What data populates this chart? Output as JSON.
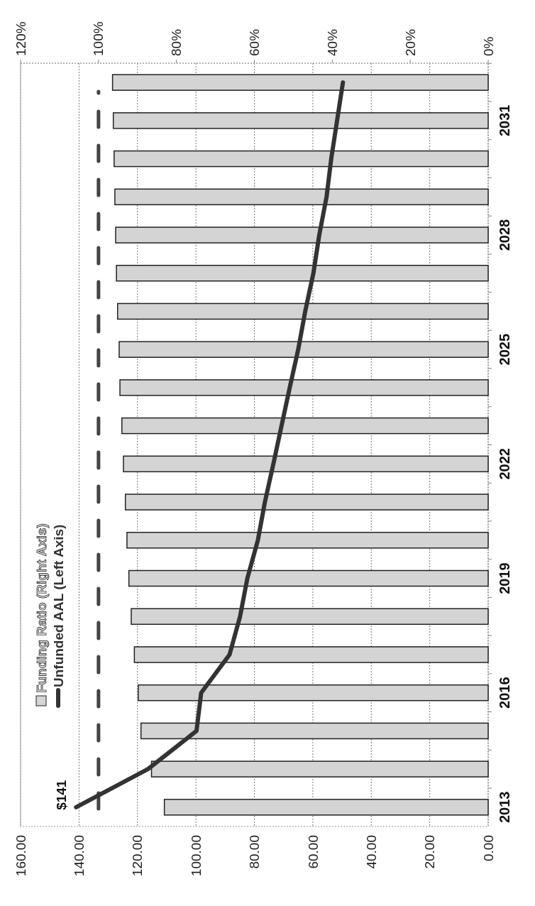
{
  "chart_data": {
    "type": "bar",
    "orientation": "horizontal",
    "categories": [
      null,
      "2031",
      null,
      null,
      "2028",
      null,
      null,
      "2025",
      null,
      null,
      "2022",
      null,
      null,
      "2019",
      null,
      null,
      "2016",
      null,
      null,
      "2013"
    ],
    "series": [
      {
        "name": "Funding Ratio (Right Axis)",
        "type": "bar",
        "axis": "x2",
        "color": "#d4d4d4",
        "values": [
          96.4,
          96.2,
          96.0,
          95.8,
          95.6,
          95.4,
          95.1,
          94.7,
          94.5,
          94.0,
          93.6,
          93.1,
          92.7,
          92.2,
          91.6,
          90.8,
          89.8,
          89.1,
          86.4,
          83.1
        ]
      },
      {
        "name": "Unfunded AAL (Left Axis)",
        "type": "line",
        "color": "#333333",
        "values": [
          49.7,
          51.7,
          53.7,
          55.3,
          57.8,
          59.8,
          62.6,
          65.0,
          67.9,
          70.7,
          73.5,
          76.4,
          78.8,
          82.4,
          84.9,
          88.5,
          98.2,
          99.8,
          116.4,
          141
        ]
      }
    ],
    "xlim": [
      160,
      0
    ],
    "xticks": [
      {
        "value": 160,
        "label": "160.00"
      },
      {
        "value": 140,
        "label": "140.00"
      },
      {
        "value": 120,
        "label": "120.00"
      },
      {
        "value": 100,
        "label": "100.00"
      },
      {
        "value": 80,
        "label": "80.00"
      },
      {
        "value": 60,
        "label": "60.00"
      },
      {
        "value": 40,
        "label": "40.00"
      },
      {
        "value": 20,
        "label": "20.00"
      },
      {
        "value": 0,
        "label": "0.00"
      }
    ],
    "x2lim": [
      120,
      0
    ],
    "x2ticks": [
      {
        "value": 120,
        "label": "120%"
      },
      {
        "value": 100,
        "label": "100%"
      },
      {
        "value": 80,
        "label": "80%"
      },
      {
        "value": 60,
        "label": "60%"
      },
      {
        "value": 40,
        "label": "40%"
      },
      {
        "value": 20,
        "label": "20%"
      },
      {
        "value": 0,
        "label": "0%"
      }
    ],
    "ref_lines": [
      {
        "axis": "x2",
        "value": 100,
        "color": "#444444",
        "line_style": "dashed"
      }
    ],
    "annotations": [
      {
        "text": "$141",
        "x": 141,
        "y": "2013"
      }
    ],
    "grid": "x",
    "legend": "left"
  }
}
